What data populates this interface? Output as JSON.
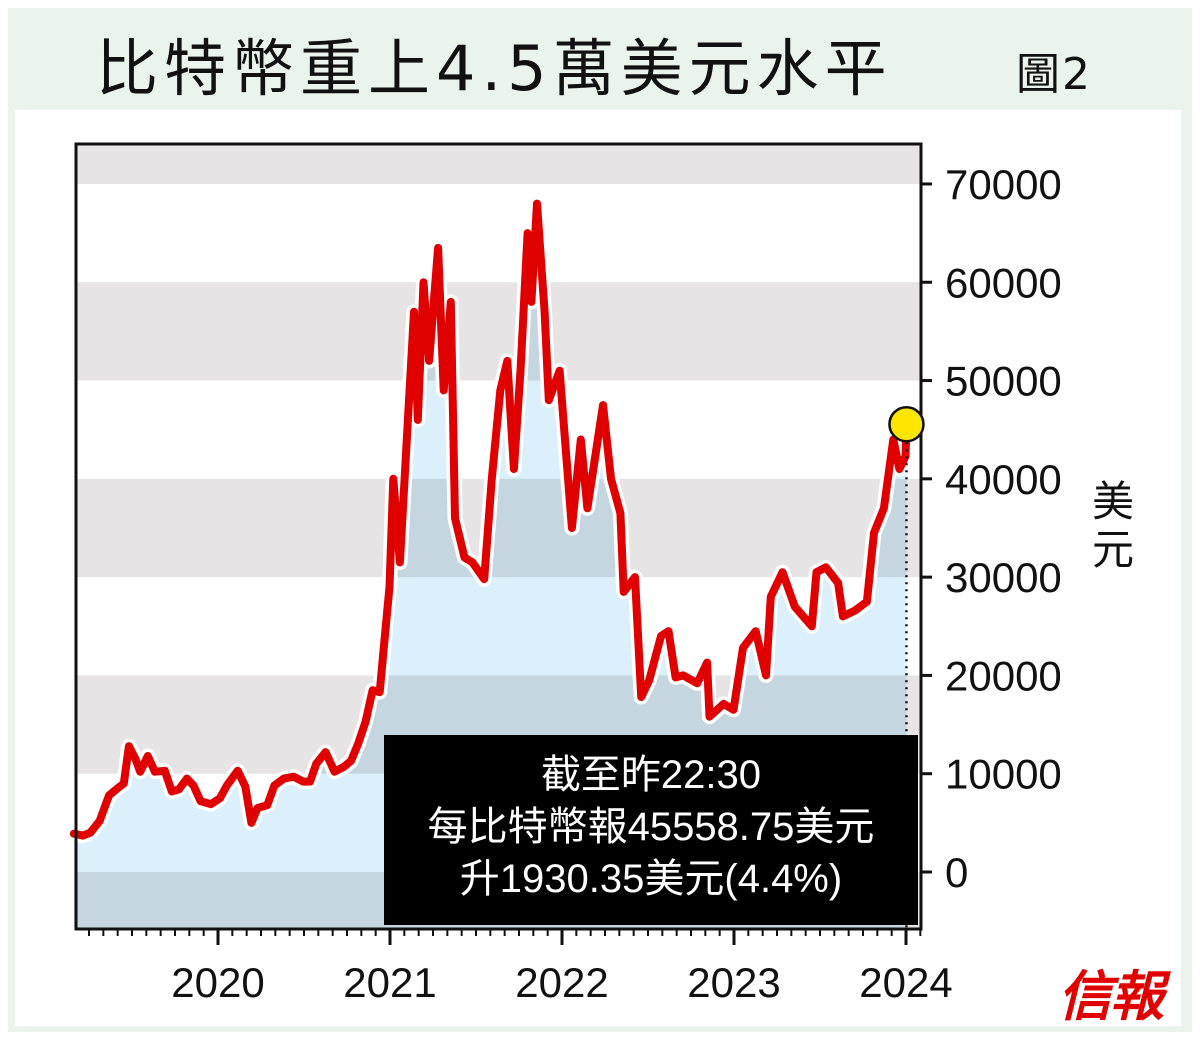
{
  "title": "比特幣重上4.5萬美元水平",
  "figure_label": "圖2",
  "logo": "信報",
  "annotation": {
    "line1": "截至昨22:30",
    "line2": "每比特幣報45558.75美元",
    "line3": "升1930.35美元(4.4%)"
  },
  "colors": {
    "line": "#e00000",
    "fill": "#dcf0fb",
    "band": "#e6e4e5",
    "marker": "#ffe600",
    "frame": "#eaf4ec"
  },
  "chart_data": {
    "type": "area",
    "title": "比特幣重上4.5萬美元水平",
    "ylabel": "美元",
    "y_axis_side": "right",
    "ylim": [
      -6000,
      74000
    ],
    "yticks": [
      0,
      10000,
      20000,
      30000,
      40000,
      50000,
      60000,
      70000
    ],
    "ytick_labels": [
      "0",
      "10000",
      "20000",
      "30000",
      "40000",
      "50000",
      "60000",
      "70000"
    ],
    "xticks": [
      "2020",
      "2021",
      "2022",
      "2023",
      "2024"
    ],
    "xlim": [
      "2019-03-01",
      "2024-01-10"
    ],
    "grid": "alternating horizontal bands",
    "highlight": {
      "date": "2024-01-02",
      "value": 45558.75
    },
    "series": [
      {
        "points": [
          [
            "2019-03-01",
            3900
          ],
          [
            "2019-03-20",
            3700
          ],
          [
            "2019-04-05",
            4000
          ],
          [
            "2019-04-25",
            5200
          ],
          [
            "2019-05-15",
            7800
          ],
          [
            "2019-05-30",
            8400
          ],
          [
            "2019-06-15",
            9000
          ],
          [
            "2019-06-26",
            12800
          ],
          [
            "2019-07-10",
            11500
          ],
          [
            "2019-07-20",
            10200
          ],
          [
            "2019-08-05",
            11800
          ],
          [
            "2019-08-20",
            10200
          ],
          [
            "2019-09-10",
            10300
          ],
          [
            "2019-09-25",
            8200
          ],
          [
            "2019-10-10",
            8400
          ],
          [
            "2019-10-27",
            9500
          ],
          [
            "2019-11-10",
            8800
          ],
          [
            "2019-11-25",
            7200
          ],
          [
            "2019-12-17",
            6900
          ],
          [
            "2020-01-05",
            7500
          ],
          [
            "2020-01-20",
            8800
          ],
          [
            "2020-02-12",
            10300
          ],
          [
            "2020-02-28",
            8700
          ],
          [
            "2020-03-12",
            5000
          ],
          [
            "2020-03-25",
            6500
          ],
          [
            "2020-04-15",
            6800
          ],
          [
            "2020-04-30",
            8800
          ],
          [
            "2020-05-20",
            9500
          ],
          [
            "2020-06-10",
            9700
          ],
          [
            "2020-06-30",
            9200
          ],
          [
            "2020-07-15",
            9200
          ],
          [
            "2020-07-28",
            11000
          ],
          [
            "2020-08-17",
            12200
          ],
          [
            "2020-09-05",
            10200
          ],
          [
            "2020-09-25",
            10700
          ],
          [
            "2020-10-10",
            11300
          ],
          [
            "2020-10-25",
            13000
          ],
          [
            "2020-11-10",
            15300
          ],
          [
            "2020-11-25",
            18500
          ],
          [
            "2020-12-10",
            18300
          ],
          [
            "2020-12-20",
            23500
          ],
          [
            "2020-12-31",
            29000
          ],
          [
            "2021-01-08",
            40000
          ],
          [
            "2021-01-22",
            31500
          ],
          [
            "2021-02-08",
            46000
          ],
          [
            "2021-02-21",
            57000
          ],
          [
            "2021-03-01",
            46000
          ],
          [
            "2021-03-13",
            60000
          ],
          [
            "2021-03-25",
            52000
          ],
          [
            "2021-04-13",
            63500
          ],
          [
            "2021-04-25",
            49000
          ],
          [
            "2021-05-10",
            58000
          ],
          [
            "2021-05-19",
            36000
          ],
          [
            "2021-06-08",
            32000
          ],
          [
            "2021-06-25",
            31500
          ],
          [
            "2021-07-20",
            29800
          ],
          [
            "2021-08-05",
            40000
          ],
          [
            "2021-08-23",
            49000
          ],
          [
            "2021-09-07",
            52000
          ],
          [
            "2021-09-21",
            41000
          ],
          [
            "2021-10-05",
            51000
          ],
          [
            "2021-10-20",
            65000
          ],
          [
            "2021-10-28",
            58000
          ],
          [
            "2021-11-09",
            68000
          ],
          [
            "2021-11-25",
            57000
          ],
          [
            "2021-12-04",
            48000
          ],
          [
            "2021-12-27",
            51000
          ],
          [
            "2022-01-22",
            35000
          ],
          [
            "2022-02-10",
            44000
          ],
          [
            "2022-02-24",
            37000
          ],
          [
            "2022-03-29",
            47500
          ],
          [
            "2022-04-15",
            40000
          ],
          [
            "2022-05-05",
            36500
          ],
          [
            "2022-05-12",
            28500
          ],
          [
            "2022-06-05",
            30000
          ],
          [
            "2022-06-18",
            17800
          ],
          [
            "2022-07-05",
            19500
          ],
          [
            "2022-07-30",
            24000
          ],
          [
            "2022-08-15",
            24500
          ],
          [
            "2022-08-30",
            19800
          ],
          [
            "2022-09-15",
            20000
          ],
          [
            "2022-10-15",
            19200
          ],
          [
            "2022-11-05",
            21300
          ],
          [
            "2022-11-10",
            15800
          ],
          [
            "2022-12-10",
            17100
          ],
          [
            "2022-12-31",
            16500
          ],
          [
            "2023-01-20",
            22800
          ],
          [
            "2023-02-16",
            24500
          ],
          [
            "2023-03-10",
            20000
          ],
          [
            "2023-03-20",
            28000
          ],
          [
            "2023-04-14",
            30500
          ],
          [
            "2023-05-10",
            27000
          ],
          [
            "2023-06-15",
            25000
          ],
          [
            "2023-06-25",
            30500
          ],
          [
            "2023-07-15",
            31000
          ],
          [
            "2023-08-10",
            29400
          ],
          [
            "2023-08-20",
            26000
          ],
          [
            "2023-09-15",
            26600
          ],
          [
            "2023-10-10",
            27500
          ],
          [
            "2023-10-25",
            34500
          ],
          [
            "2023-11-15",
            37000
          ],
          [
            "2023-12-05",
            44000
          ],
          [
            "2023-12-18",
            41000
          ],
          [
            "2023-12-31",
            42300
          ],
          [
            "2024-01-02",
            45558.75
          ]
        ]
      }
    ]
  }
}
